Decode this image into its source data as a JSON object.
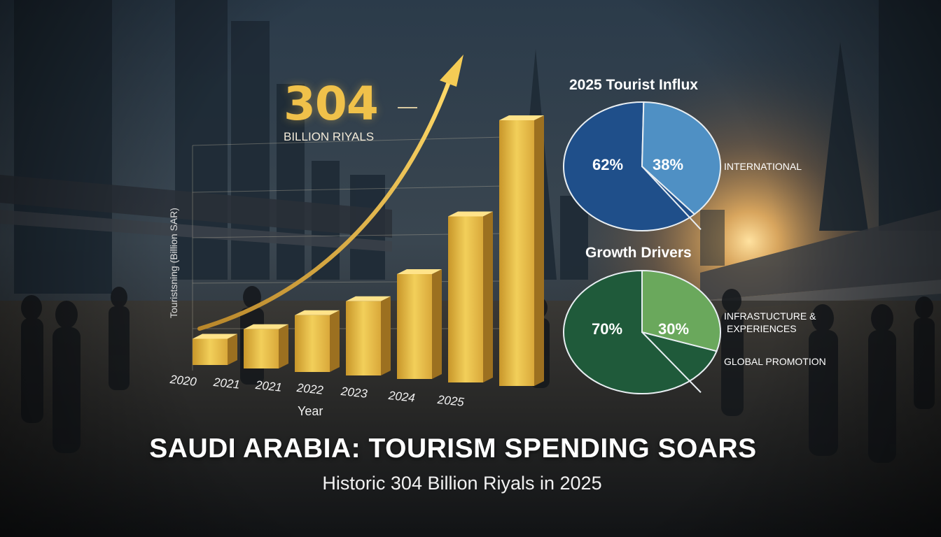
{
  "colors": {
    "gold": "#e8b83a",
    "blue_dark": "#1f4f8a",
    "blue_light": "#4f90c4",
    "green_dark": "#1f5a3a",
    "green_light": "#6aa85c"
  },
  "headline": "SAUDI ARABIA: TOURISM SPENDING SOARS",
  "subheadline": "Historic 304 Billion Riyals in 2025",
  "chart_data": [
    {
      "type": "bar",
      "callout_value": "304",
      "callout_unit": "BILLION RIYALS",
      "ylabel": "Touristsning (Billion SAR)",
      "xlabel": "Year",
      "categories": [
        "2020",
        "2021",
        "2021",
        "2022",
        "2023",
        "2024",
        "2025"
      ],
      "values": [
        30,
        45,
        65,
        85,
        120,
        190,
        304
      ],
      "ylim": [
        0,
        304
      ],
      "trend_arrow": true
    },
    {
      "type": "pie",
      "title": "2025 Tourist Influx",
      "slices": [
        {
          "label": "62%",
          "value": 62,
          "color": "#1f4f8a"
        },
        {
          "label": "38%",
          "value": 38,
          "color": "#4f90c4"
        }
      ],
      "legend": [
        "INTERNATIONAL"
      ]
    },
    {
      "type": "pie",
      "title": "Growth Drivers",
      "slices": [
        {
          "label": "70%",
          "value": 70,
          "color": "#1f5a3a"
        },
        {
          "label": "30%",
          "value": 30,
          "color": "#6aa85c"
        }
      ],
      "legend": [
        "INFRASTUCTURE &",
        "EXPERIENCES",
        "GLOBAL PROMOTION"
      ]
    }
  ]
}
